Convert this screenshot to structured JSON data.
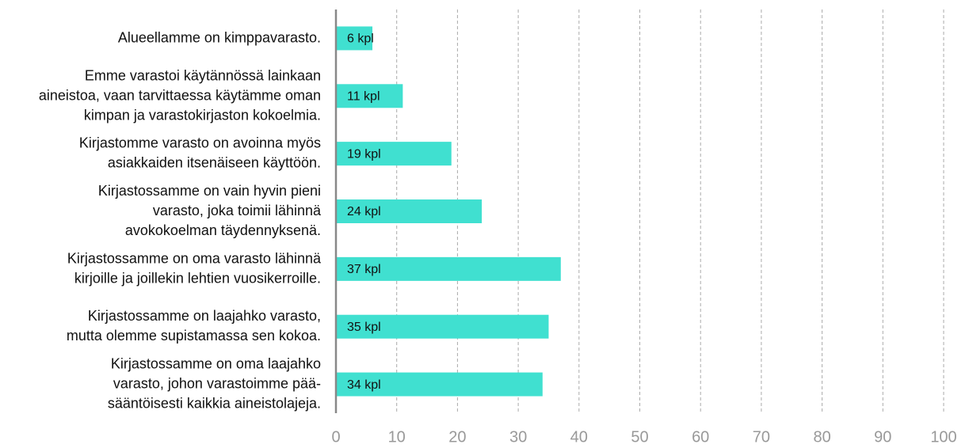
{
  "chart_data": {
    "type": "barh",
    "categories": [
      "Alueellamme on kimppavarasto.",
      "Emme varastoi käytännössä lainkaan\naineistoa, vaan tarvittaessa käytämme oman\nkimpan ja varastokirjaston kokoelmia.",
      "Kirjastomme varasto on avoinna myös\nasiakkaiden itsenäiseen käyttöön.",
      "Kirjastossamme on vain hyvin pieni\nvarasto, joka toimii lähinnä\navokokoelman täydennyksenä.",
      "Kirjastossamme on oma varasto lähinnä\nkirjoille ja joillekin lehtien vuosikerroille.",
      "Kirjastossamme on laajahko varasto,\nmutta olemme supistamassa sen kokoa.",
      "Kirjastossamme on oma laajahko\nvarasto, johon varastoimme pää-\nsääntöisesti kaikkia aineistolajeja."
    ],
    "values": [
      6,
      11,
      19,
      24,
      37,
      35,
      34
    ],
    "value_labels": [
      "6 kpl",
      "11 kpl",
      "19 kpl",
      "24 kpl",
      "37 kpl",
      "35 kpl",
      "34 kpl"
    ],
    "color": "#40e0d0",
    "xlim": [
      0,
      100
    ],
    "xticks": [
      0,
      10,
      20,
      30,
      40,
      50,
      60,
      70,
      80,
      90,
      100
    ],
    "grid": true
  }
}
